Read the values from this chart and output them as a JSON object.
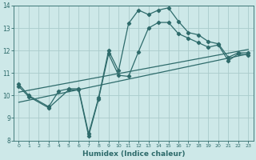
{
  "xlabel": "Humidex (Indice chaleur)",
  "xlim": [
    -0.5,
    23.5
  ],
  "ylim": [
    8,
    14
  ],
  "yticks": [
    8,
    9,
    10,
    11,
    12,
    13,
    14
  ],
  "xticks": [
    0,
    1,
    2,
    3,
    4,
    5,
    6,
    7,
    8,
    9,
    10,
    11,
    12,
    13,
    14,
    15,
    16,
    17,
    18,
    19,
    20,
    21,
    22,
    23
  ],
  "background_color": "#cde8e8",
  "grid_color": "#aacccc",
  "line_color": "#2e6b6b",
  "lines": [
    {
      "x": [
        0,
        1,
        3,
        4,
        5,
        6,
        7,
        8,
        9,
        10,
        11,
        12,
        13,
        14,
        15,
        16,
        17,
        18,
        19,
        20,
        21,
        22,
        23
      ],
      "y": [
        10.5,
        10.0,
        9.5,
        10.2,
        10.3,
        10.3,
        8.3,
        9.9,
        12.0,
        11.1,
        13.2,
        13.8,
        13.6,
        13.8,
        13.9,
        13.3,
        12.8,
        12.7,
        12.4,
        12.3,
        11.7,
        11.9,
        11.9
      ],
      "marker": "D",
      "markersize": 2.2,
      "linewidth": 0.9
    },
    {
      "x": [
        0,
        1,
        3,
        5,
        6,
        7,
        8,
        9,
        10,
        11,
        12,
        13,
        14,
        15,
        16,
        17,
        18,
        19,
        20,
        21,
        22,
        23
      ],
      "y": [
        10.4,
        9.95,
        9.45,
        10.25,
        10.25,
        8.2,
        9.85,
        11.85,
        10.9,
        10.85,
        11.95,
        13.0,
        13.25,
        13.25,
        12.75,
        12.55,
        12.35,
        12.15,
        12.25,
        11.55,
        11.85,
        11.8
      ],
      "marker": "D",
      "markersize": 2.2,
      "linewidth": 0.9
    },
    {
      "x": [
        0,
        23
      ],
      "y": [
        10.15,
        12.05
      ],
      "marker": null,
      "markersize": 0,
      "linewidth": 0.9
    },
    {
      "x": [
        0,
        23
      ],
      "y": [
        9.7,
        11.85
      ],
      "marker": null,
      "markersize": 0,
      "linewidth": 0.9
    }
  ]
}
